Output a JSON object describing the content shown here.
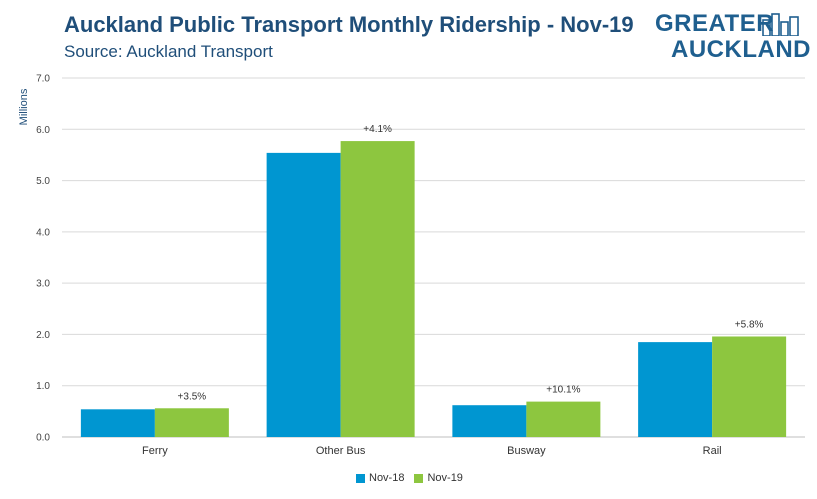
{
  "header": {
    "title": "Auckland Public Transport Monthly Ridership - Nov-19",
    "subtitle": "Source: Auckland Transport"
  },
  "logo": {
    "line1": "GREATER",
    "line2": "AUCKLAND",
    "icon": "city-skyline-icon"
  },
  "colors": {
    "nov18": "#0096d1",
    "nov19": "#8dc63f",
    "title": "#1f4e79",
    "grid": "#d9d9d9"
  },
  "chart_data": {
    "type": "bar",
    "title": "Auckland Public Transport Monthly Ridership - Nov-19",
    "subtitle": "Source: Auckland Transport",
    "xlabel": "",
    "ylabel": "Millions",
    "ylim": [
      0,
      7.0
    ],
    "yticks": [
      "0.0",
      "1.0",
      "2.0",
      "3.0",
      "4.0",
      "5.0",
      "6.0",
      "7.0"
    ],
    "grid": true,
    "legend_position": "bottom",
    "categories": [
      "Ferry",
      "Other Bus",
      "Busway",
      "Rail"
    ],
    "series": [
      {
        "name": "Nov-18",
        "values": [
          0.54,
          5.54,
          0.62,
          1.85
        ]
      },
      {
        "name": "Nov-19",
        "values": [
          0.56,
          5.77,
          0.69,
          1.96
        ]
      }
    ],
    "annotations": [
      "+3.5%",
      "+4.1%",
      "+10.1%",
      "+5.8%"
    ]
  }
}
